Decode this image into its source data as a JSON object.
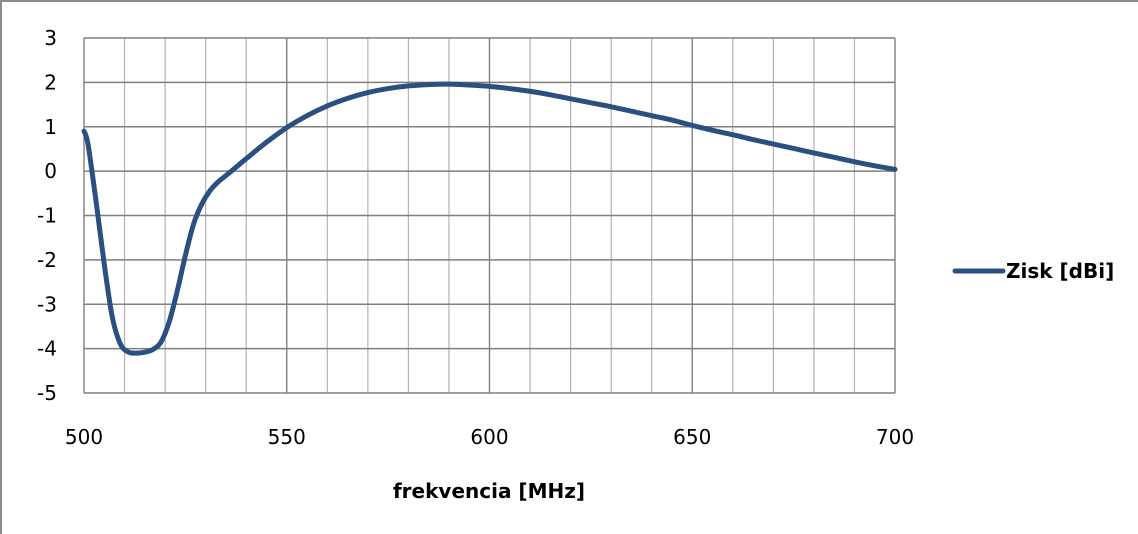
{
  "chart_data": {
    "type": "line",
    "xlabel": "frekvencia [MHz]",
    "ylabel": "",
    "xlim": [
      500,
      700
    ],
    "ylim": [
      -5,
      3
    ],
    "x_ticks": [
      "500",
      "550",
      "600",
      "650",
      "700"
    ],
    "y_ticks": [
      "3",
      "2",
      "1",
      "0",
      "-1",
      "-2",
      "-3",
      "-4",
      "-5"
    ],
    "grid": true,
    "legend_position": "right",
    "series": [
      {
        "name": "Zisk [dBi]",
        "color": "#2a5082",
        "x": [
          500,
          501,
          503,
          505,
          507,
          509,
          511,
          513,
          515,
          517,
          519,
          521,
          523,
          525,
          527,
          529,
          531,
          533,
          535,
          537,
          540,
          545,
          550,
          555,
          560,
          565,
          570,
          575,
          580,
          585,
          590,
          595,
          600,
          605,
          610,
          615,
          620,
          625,
          630,
          635,
          640,
          645,
          650,
          655,
          660,
          665,
          670,
          675,
          680,
          685,
          690,
          695,
          700
        ],
        "y": [
          0.9,
          0.6,
          -0.7,
          -2.1,
          -3.3,
          -3.9,
          -4.08,
          -4.1,
          -4.08,
          -4.02,
          -3.85,
          -3.4,
          -2.7,
          -1.9,
          -1.2,
          -0.75,
          -0.45,
          -0.25,
          -0.1,
          0.05,
          0.28,
          0.65,
          0.98,
          1.25,
          1.47,
          1.64,
          1.77,
          1.86,
          1.92,
          1.95,
          1.96,
          1.94,
          1.91,
          1.86,
          1.8,
          1.72,
          1.63,
          1.54,
          1.45,
          1.35,
          1.25,
          1.15,
          1.03,
          0.92,
          0.82,
          0.71,
          0.61,
          0.51,
          0.41,
          0.31,
          0.21,
          0.12,
          0.04
        ]
      }
    ]
  }
}
